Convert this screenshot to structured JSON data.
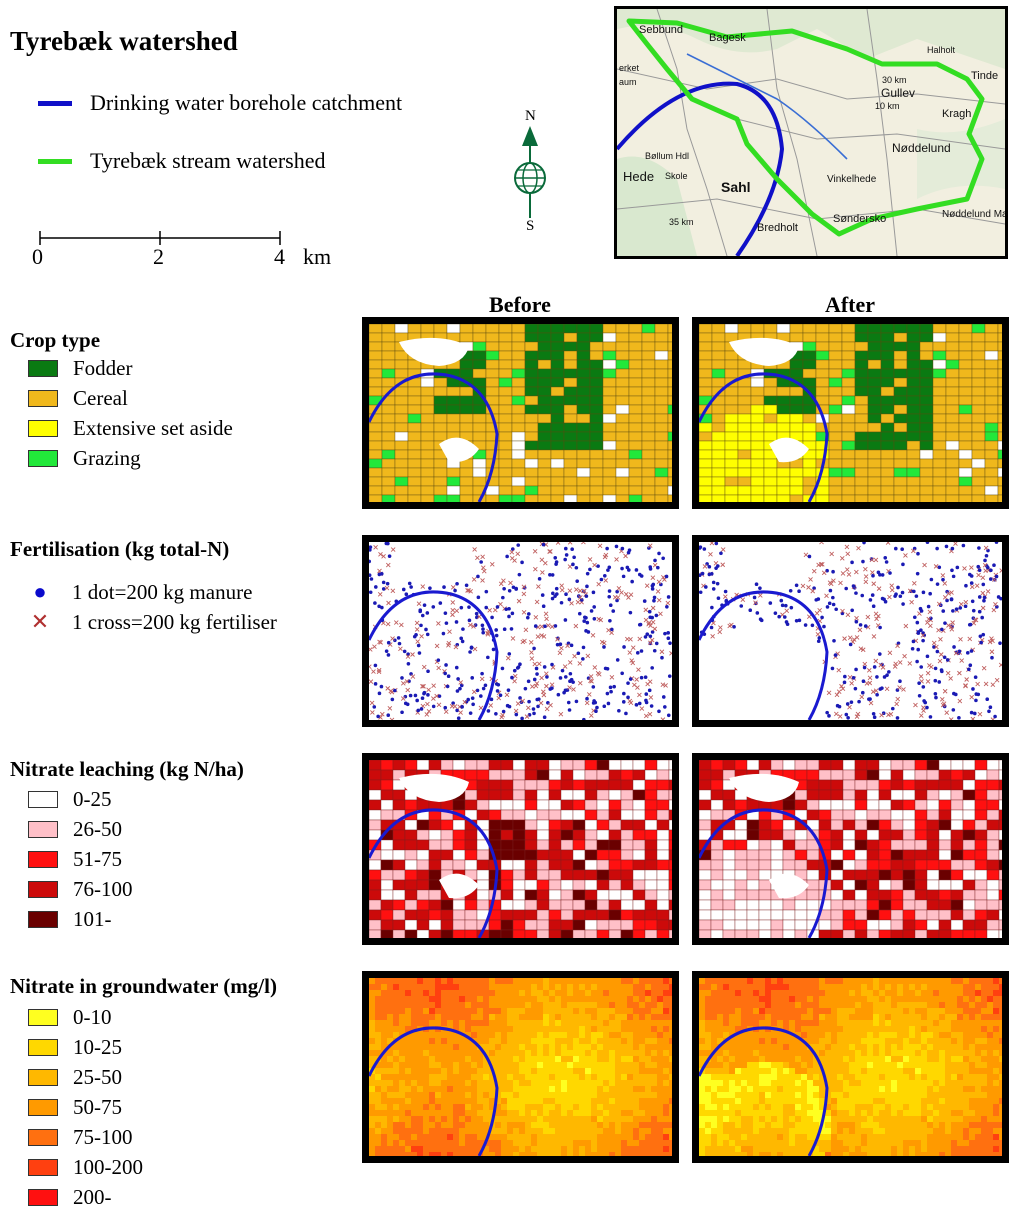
{
  "header": {
    "title": "Tyrebæk watershed",
    "legend": [
      {
        "label": "Drinking water borehole catchment",
        "color": "#1010c8"
      },
      {
        "label": "Tyrebæk stream watershed",
        "color": "#33dd22"
      }
    ],
    "scale": {
      "ticks": [
        "0",
        "2",
        "4"
      ],
      "unit": "km"
    },
    "compass": {
      "north": "N",
      "south": "S"
    }
  },
  "topo_map": {
    "place_labels": [
      "Sebbund",
      "Bagesk",
      "Halholt",
      "Tinde",
      "Gullev",
      "Kragh",
      "Nøddelund",
      "Nøddelund Ma",
      "Bøllum Hdl",
      "Hede",
      "Skole",
      "Sahl",
      "Vinkelhede",
      "Søndersko",
      "Bredholt",
      "erket",
      "aum",
      "30 km",
      "10 km",
      "35 km"
    ]
  },
  "columns": {
    "before": "Before",
    "after": "After"
  },
  "sections": {
    "crop": {
      "title": "Crop type",
      "items": [
        {
          "label": "Fodder",
          "color": "#0a7a12"
        },
        {
          "label": "Cereal",
          "color": "#f0b81c"
        },
        {
          "label": "Extensive set aside",
          "color": "#ffff00"
        },
        {
          "label": "Grazing",
          "color": "#22e83a"
        }
      ]
    },
    "fert": {
      "title": "Fertilisation (kg total-N)",
      "items": [
        {
          "label": "1 dot=200 kg manure",
          "symbol": "●",
          "color": "#0a0acc"
        },
        {
          "label": "1 cross=200 kg fertiliser",
          "symbol": "✕",
          "color": "#b03030"
        }
      ]
    },
    "leach": {
      "title": "Nitrate leaching (kg N/ha)",
      "items": [
        {
          "label": "0-25",
          "color": "#ffffff"
        },
        {
          "label": "26-50",
          "color": "#ffc0c8"
        },
        {
          "label": "51-75",
          "color": "#ff1010"
        },
        {
          "label": "76-100",
          "color": "#cc0a0a"
        },
        {
          "label": "101-",
          "color": "#6a0000"
        }
      ]
    },
    "gw": {
      "title": "Nitrate in groundwater (mg/l)",
      "items": [
        {
          "label": "0-10",
          "color": "#ffff20"
        },
        {
          "label": "10-25",
          "color": "#ffd800"
        },
        {
          "label": "25-50",
          "color": "#ffb800"
        },
        {
          "label": "50-75",
          "color": "#ff9a00"
        },
        {
          "label": "75-100",
          "color": "#ff7010"
        },
        {
          "label": "100-200",
          "color": "#ff4010"
        },
        {
          "label": "200-",
          "color": "#ff1010"
        }
      ]
    }
  }
}
